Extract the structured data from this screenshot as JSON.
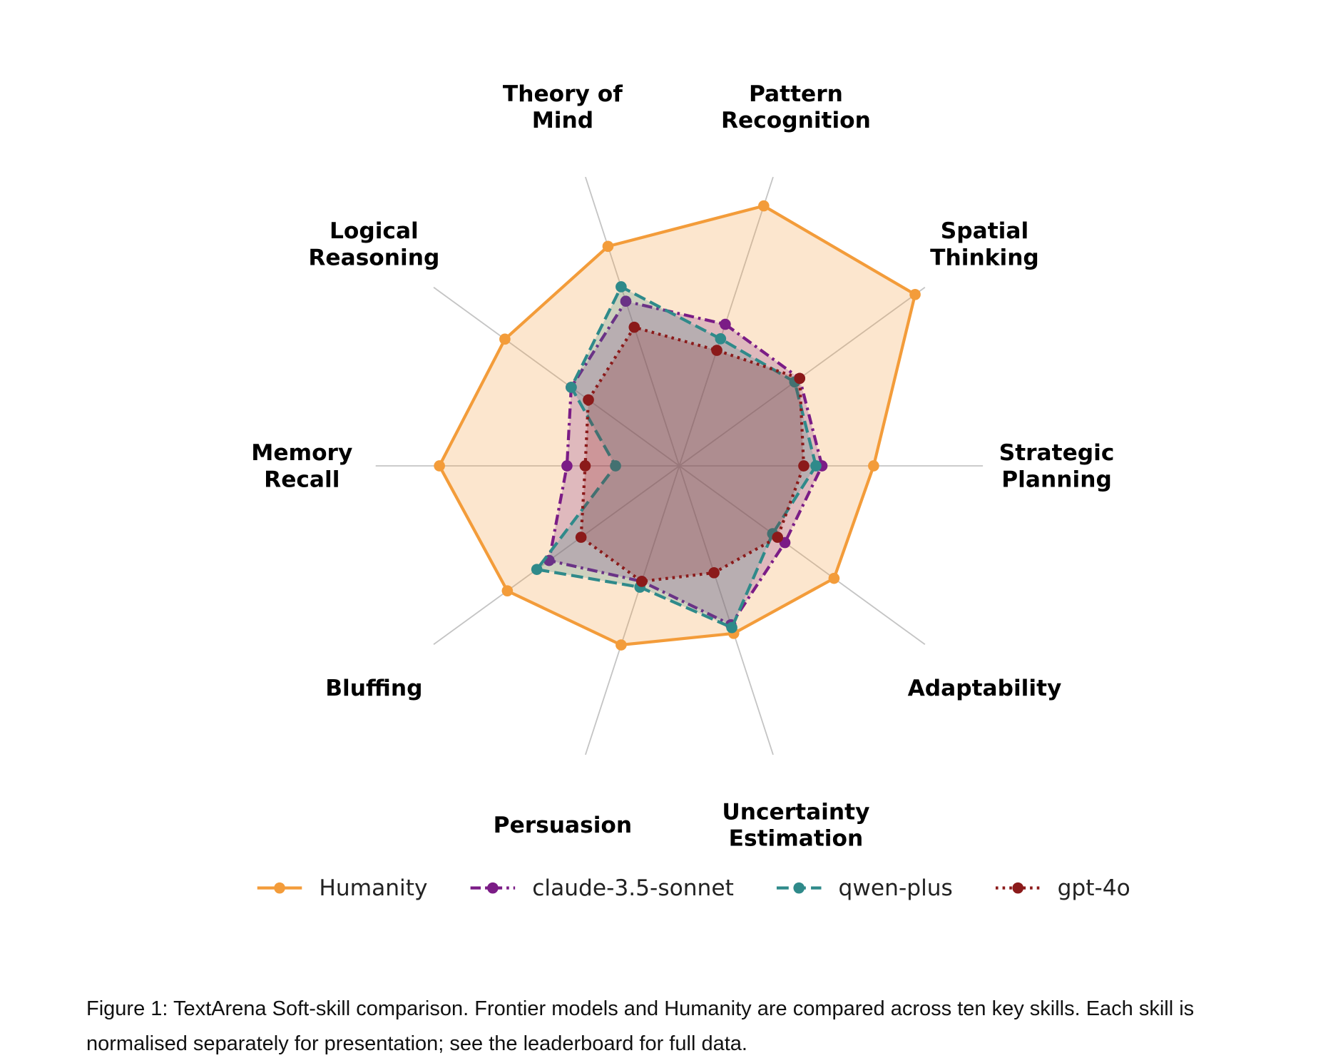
{
  "chart_data": {
    "type": "radar",
    "categories": [
      "Strategic Planning",
      "Spatial Thinking",
      "Pattern Recognition",
      "Theory of Mind",
      "Logical Reasoning",
      "Memory Recall",
      "Bluffing",
      "Persuasion",
      "Uncertainty Estimation",
      "Adaptability"
    ],
    "rlim": [
      0,
      1
    ],
    "series": [
      {
        "name": "Humanity",
        "color": "#f39c3a",
        "values": [
          0.64,
          0.96,
          0.9,
          0.76,
          0.71,
          0.79,
          0.7,
          0.62,
          0.58,
          0.63
        ]
      },
      {
        "name": "claude-3.5-sonnet",
        "color": "#7b1c86",
        "values": [
          0.47,
          0.49,
          0.49,
          0.57,
          0.44,
          0.37,
          0.53,
          0.4,
          0.55,
          0.43
        ]
      },
      {
        "name": "qwen-plus",
        "color": "#2f8a8a",
        "values": [
          0.45,
          0.47,
          0.44,
          0.62,
          0.44,
          0.21,
          0.58,
          0.42,
          0.56,
          0.38
        ]
      },
      {
        "name": "gpt-4o",
        "color": "#8b1a1a",
        "values": [
          0.41,
          0.49,
          0.4,
          0.48,
          0.37,
          0.31,
          0.4,
          0.4,
          0.37,
          0.4
        ]
      }
    ]
  },
  "caption": "Figure 1: TextArena Soft-skill comparison. Frontier models and Humanity are compared across ten key skills. Each skill is normalised separately for presentation; see the leaderboard for full data."
}
